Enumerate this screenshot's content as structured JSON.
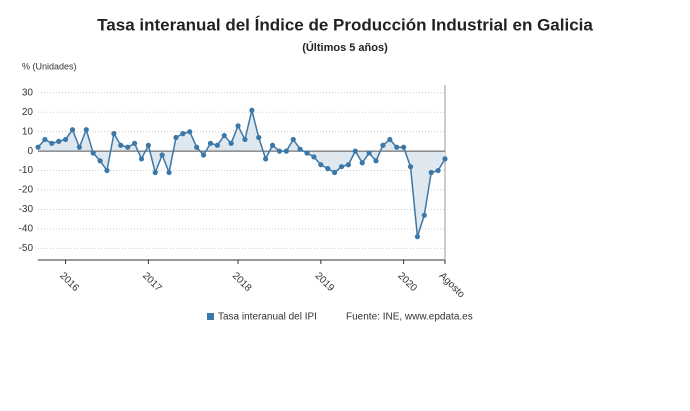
{
  "chart_data": {
    "type": "line",
    "title": "Tasa interanual del Índice de Producción Industrial en Galicia",
    "subtitle": "(Últimos 5 años)",
    "y_label": "% (Unidades)",
    "source": "Fuente: INE, www.epdata.es",
    "categories": [
      null,
      null,
      null,
      null,
      "2016",
      null,
      null,
      null,
      null,
      null,
      null,
      null,
      null,
      null,
      null,
      null,
      "2017",
      null,
      null,
      null,
      null,
      null,
      null,
      null,
      null,
      null,
      null,
      null,
      null,
      "2018",
      null,
      null,
      null,
      null,
      null,
      null,
      null,
      null,
      null,
      null,
      null,
      "2019",
      null,
      null,
      null,
      null,
      null,
      null,
      null,
      null,
      null,
      null,
      null,
      "2020",
      null,
      null,
      null,
      null,
      null,
      "Agosto"
    ],
    "series": [
      {
        "name": "Tasa interanual del IPI",
        "color": "#3b78a8",
        "values": [
          2,
          6,
          4,
          5,
          6,
          11,
          2,
          11,
          -1,
          -5,
          -10,
          9,
          3,
          2,
          4,
          -4,
          3,
          -11,
          -2,
          -11,
          7,
          9,
          10,
          2,
          -2,
          4,
          3,
          8,
          4,
          13,
          6,
          21,
          7,
          -4,
          3,
          0,
          0,
          6,
          1,
          -1,
          -3,
          -7,
          -9,
          -11,
          -8,
          -7,
          0,
          -6,
          -1,
          -5,
          3,
          6,
          2,
          2,
          -8,
          -44,
          -33,
          -11,
          -10,
          -4
        ]
      }
    ],
    "ylim": [
      -56,
      34
    ],
    "yticks": [
      30,
      20,
      10,
      0,
      -10,
      -20,
      -30,
      -40,
      -50
    ],
    "grid": true,
    "fill_to_zero": true,
    "area_color": "#dfe7ef"
  }
}
